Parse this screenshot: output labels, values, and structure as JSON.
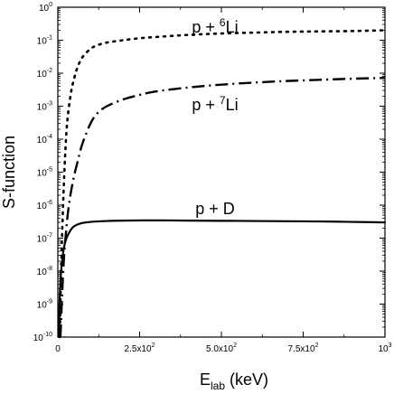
{
  "chart_data": {
    "type": "line",
    "xlabel": {
      "main": "E",
      "sub": "lab",
      "unit": " (keV)"
    },
    "ylabel": "S-function",
    "xlim": [
      0,
      1000
    ],
    "ylim": [
      1e-10,
      1
    ],
    "yscale": "log",
    "grid": false,
    "x_ticks": [
      {
        "value": 0,
        "mant": "0",
        "exp": ""
      },
      {
        "value": 250,
        "mant": "2.5x10",
        "exp": "2"
      },
      {
        "value": 500,
        "mant": "5.0x10",
        "exp": "2"
      },
      {
        "value": 750,
        "mant": "7.5x10",
        "exp": "2"
      },
      {
        "value": 1000,
        "mant": "10",
        "exp": "3"
      }
    ],
    "y_ticks": [
      {
        "value": 1,
        "mant": "10",
        "exp": "0"
      },
      {
        "value": 0.1,
        "mant": "10",
        "exp": "-1"
      },
      {
        "value": 0.01,
        "mant": "10",
        "exp": "-2"
      },
      {
        "value": 0.001,
        "mant": "10",
        "exp": "-3"
      },
      {
        "value": 0.0001,
        "mant": "10",
        "exp": "-4"
      },
      {
        "value": 1e-05,
        "mant": "10",
        "exp": "-5"
      },
      {
        "value": 1e-06,
        "mant": "10",
        "exp": "-6"
      },
      {
        "value": 1e-07,
        "mant": "10",
        "exp": "-7"
      },
      {
        "value": 1e-08,
        "mant": "10",
        "exp": "-8"
      },
      {
        "value": 1e-09,
        "mant": "10",
        "exp": "-9"
      },
      {
        "value": 1e-10,
        "mant": "10",
        "exp": "-10"
      }
    ],
    "series": [
      {
        "name": "p + 6Li",
        "label": {
          "pre": "p + ",
          "sup": "6",
          "post": "Li"
        },
        "style": "dotted",
        "x": [
          6,
          10,
          15,
          20,
          25,
          30,
          40,
          50,
          60,
          70,
          80,
          100,
          120,
          150,
          200,
          250,
          300,
          400,
          500,
          600,
          700,
          800,
          900,
          1000
        ],
        "y": [
          1e-10,
          1e-08,
          5e-07,
          1e-05,
          0.0001,
          0.00045,
          0.0025,
          0.007,
          0.015,
          0.025,
          0.035,
          0.055,
          0.07,
          0.085,
          0.1,
          0.115,
          0.125,
          0.145,
          0.16,
          0.17,
          0.18,
          0.185,
          0.19,
          0.2
        ]
      },
      {
        "name": "p + 7Li",
        "label": {
          "pre": "p + ",
          "sup": "7",
          "post": "Li"
        },
        "style": "dash-dot",
        "x": [
          8,
          12,
          15,
          20,
          25,
          30,
          35,
          40,
          50,
          60,
          70,
          80,
          100,
          120,
          150,
          200,
          250,
          300,
          400,
          500,
          600,
          700,
          800,
          900,
          1000
        ],
        "y": [
          1e-10,
          1e-09,
          5e-09,
          4e-08,
          1.5e-07,
          5e-07,
          1.2e-06,
          2.5e-06,
          8e-06,
          2e-05,
          5e-05,
          0.0001,
          0.0003,
          0.0006,
          0.001,
          0.0016,
          0.0022,
          0.0028,
          0.0037,
          0.0045,
          0.0052,
          0.0058,
          0.0063,
          0.0068,
          0.0072
        ]
      },
      {
        "name": "p + D",
        "label": {
          "pre": "p + D",
          "sup": "",
          "post": ""
        },
        "style": "solid",
        "x": [
          3,
          5,
          7,
          10,
          15,
          20,
          25,
          30,
          40,
          50,
          70,
          100,
          150,
          200,
          300,
          400,
          500,
          600,
          700,
          800,
          900,
          1000
        ],
        "y": [
          1e-10,
          1e-09,
          3e-09,
          1e-08,
          3e-08,
          6e-08,
          9e-08,
          1.2e-07,
          1.8e-07,
          2.3e-07,
          2.8e-07,
          3.1e-07,
          3.3e-07,
          3.4e-07,
          3.45e-07,
          3.4e-07,
          3.35e-07,
          3.3e-07,
          3.25e-07,
          3.2e-07,
          3.1e-07,
          3e-07
        ]
      }
    ]
  }
}
